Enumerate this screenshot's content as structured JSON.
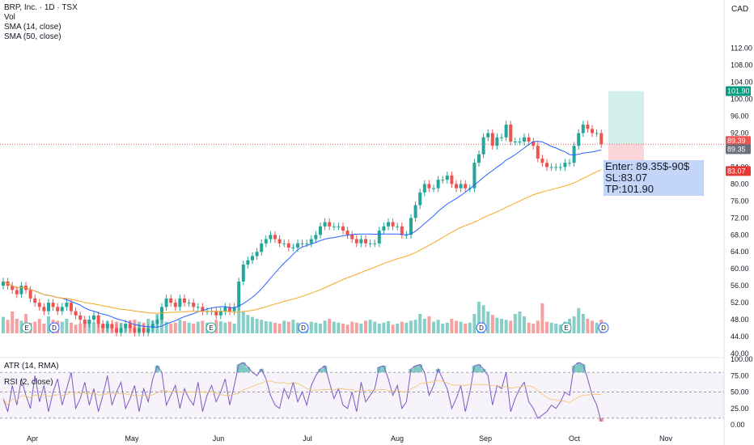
{
  "header": {
    "symbol_line": "BRP, Inc. · 1D · TSX",
    "currency": "CAD"
  },
  "indicators": {
    "vol": "Vol",
    "sma14": "SMA (14, close)",
    "sma50": "SMA (50, close)",
    "atr": "ATR (14, RMA)",
    "rsi": "RSI (2, close)"
  },
  "note": {
    "enter": "Enter: 89.35$-90$",
    "sl": "SL:83.07",
    "tp": "TP:101.90"
  },
  "colors": {
    "up": "#26a69a",
    "down": "#ef5350",
    "sma14": "#2962ff",
    "sma50": "#f5a623",
    "rsi": "#7e57c2",
    "tp_zone": "#d3efe9",
    "sl_zone": "#fbd5d7",
    "note_bg": "#c4d5fa"
  },
  "chart_data": [
    {
      "type": "candlestick",
      "title": "BRP, Inc. · 1D · TSX",
      "ylim": [
        40,
        114
      ],
      "y_ticks": [
        "40.00",
        "44.00",
        "48.00",
        "52.00",
        "56.00",
        "60.00",
        "64.00",
        "68.00",
        "72.00",
        "76.00",
        "80.00",
        "84.00",
        "88.00",
        "92.00",
        "96.00",
        "100.00",
        "104.00",
        "108.00",
        "112.00"
      ],
      "x_ticks": [
        "Apr",
        "May",
        "Jun",
        "Jul",
        "Aug",
        "Sep",
        "Oct",
        "Nov"
      ],
      "price_labels": [
        {
          "text": "101.90",
          "value": 101.9,
          "color": "#089981"
        },
        {
          "text": "89.39",
          "value": 89.39,
          "color": "#ef5350"
        },
        {
          "text": "89.35",
          "value": 89.35,
          "color": "#6b6f7b"
        },
        {
          "text": "83.07",
          "value": 83.07,
          "color": "#e53935"
        }
      ],
      "position_tool": {
        "entry": 89.35,
        "stop": 83.07,
        "target": 101.9
      },
      "current_price": 89.39,
      "closes": [
        57,
        56,
        55,
        54,
        56,
        55,
        53,
        52,
        51,
        50,
        52,
        51,
        50,
        51,
        52,
        50,
        49,
        48,
        47,
        48,
        49,
        47,
        46,
        47,
        46,
        45,
        46,
        47,
        46,
        45,
        46,
        45,
        46,
        47,
        48,
        51,
        53,
        52,
        51,
        53,
        52,
        52,
        51,
        51,
        50,
        50,
        50,
        49,
        50,
        51,
        50,
        51,
        57,
        61,
        62,
        63,
        64,
        66,
        67,
        68,
        67,
        66,
        66,
        65,
        65,
        66,
        66,
        66,
        67,
        68,
        70,
        71,
        70,
        70,
        70,
        69,
        68,
        67,
        66,
        67,
        66,
        66,
        66,
        69,
        70,
        71,
        70,
        70,
        68,
        68,
        72,
        75,
        78,
        80,
        79,
        79,
        81,
        81,
        82,
        80,
        79,
        80,
        79,
        79,
        85,
        87,
        91,
        92,
        89,
        91,
        91,
        94,
        90,
        90,
        90,
        91,
        90,
        89,
        86,
        85,
        84,
        84,
        84,
        84,
        85,
        85,
        89,
        92,
        94,
        93,
        92,
        92,
        89.39
      ],
      "series": [
        {
          "name": "SMA (14, close)",
          "role": "moving average 14"
        },
        {
          "name": "SMA (50, close)",
          "role": "moving average 50"
        }
      ],
      "volume": [
        34,
        28,
        45,
        30,
        26,
        40,
        22,
        24,
        30,
        20,
        35,
        28,
        26,
        24,
        30,
        22,
        18,
        20,
        25,
        28,
        22,
        30,
        20,
        25,
        18,
        24,
        22,
        20,
        26,
        28,
        24,
        22,
        30,
        26,
        40,
        38,
        24,
        20,
        22,
        28,
        25,
        22,
        20,
        24,
        26,
        22,
        20,
        28,
        25,
        22,
        24,
        20,
        60,
        45,
        38,
        34,
        30,
        28,
        25,
        24,
        22,
        20,
        26,
        24,
        28,
        22,
        20,
        18,
        24,
        22,
        20,
        26,
        30,
        24,
        22,
        20,
        18,
        24,
        22,
        20,
        26,
        28,
        24,
        20,
        22,
        25,
        18,
        20,
        24,
        22,
        26,
        28,
        40,
        30,
        35,
        24,
        28,
        20,
        22,
        30,
        26,
        24,
        20,
        22,
        40,
        65,
        58,
        45,
        38,
        32,
        30,
        28,
        26,
        40,
        45,
        35,
        22,
        20,
        26,
        62,
        24,
        22,
        20,
        18,
        24,
        30,
        35,
        52,
        40,
        30,
        26,
        22,
        28
      ],
      "event_markers": [
        "E",
        "D",
        "E",
        "D",
        "D",
        "E",
        "D"
      ]
    },
    {
      "type": "line",
      "title": "RSI (2, close)",
      "ylim": [
        0,
        100
      ],
      "y_ticks": [
        "0.00",
        "25.00",
        "50.00",
        "75.00",
        "100.00"
      ],
      "bands": [
        10,
        50,
        80
      ],
      "values": [
        40,
        20,
        60,
        30,
        70,
        45,
        25,
        75,
        35,
        60,
        20,
        50,
        70,
        30,
        55,
        80,
        25,
        40,
        65,
        30,
        55,
        20,
        45,
        75,
        30,
        50,
        65,
        25,
        40,
        60,
        20,
        55,
        35,
        70,
        90,
        80,
        30,
        45,
        60,
        25,
        55,
        40,
        30,
        65,
        20,
        45,
        60,
        35,
        50,
        70,
        30,
        60,
        92,
        95,
        88,
        80,
        75,
        85,
        70,
        45,
        30,
        25,
        55,
        40,
        65,
        35,
        50,
        30,
        60,
        75,
        85,
        90,
        65,
        40,
        55,
        30,
        25,
        50,
        20,
        65,
        35,
        45,
        55,
        88,
        90,
        70,
        45,
        60,
        25,
        35,
        85,
        90,
        92,
        80,
        45,
        60,
        85,
        70,
        55,
        25,
        40,
        60,
        20,
        50,
        90,
        92,
        85,
        75,
        30,
        60,
        55,
        80,
        20,
        40,
        55,
        65,
        35,
        25,
        10,
        15,
        20,
        30,
        25,
        35,
        50,
        45,
        90,
        95,
        92,
        70,
        45,
        30,
        5
      ]
    }
  ]
}
